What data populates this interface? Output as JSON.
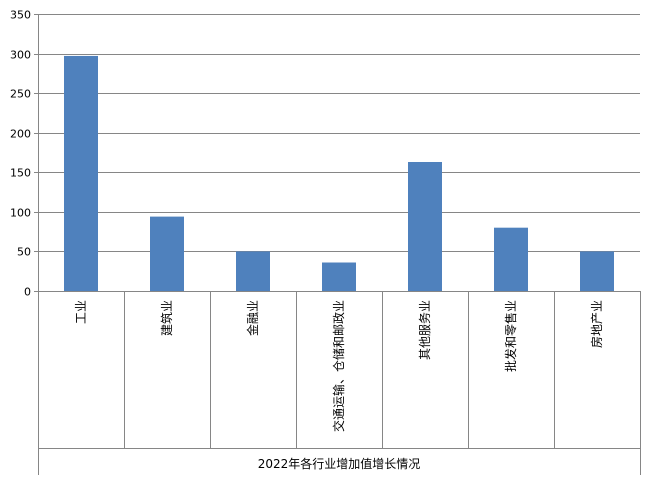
{
  "chart_data": {
    "type": "bar",
    "xlabel": "2022年各行业增加值增长情况",
    "ylabel": "",
    "ylim": [
      0,
      350
    ],
    "yticks": [
      0,
      50,
      100,
      150,
      200,
      250,
      300,
      350
    ],
    "grid": true,
    "legend": "none",
    "bar_color": "#4F81BD",
    "categories": [
      "工业",
      "建筑业",
      "金融业",
      "交通运输、仓储和邮政业",
      "其他服务业",
      "批发和零售业",
      "房地产业"
    ],
    "values": [
      297,
      94,
      50,
      36,
      163,
      80,
      50
    ]
  }
}
